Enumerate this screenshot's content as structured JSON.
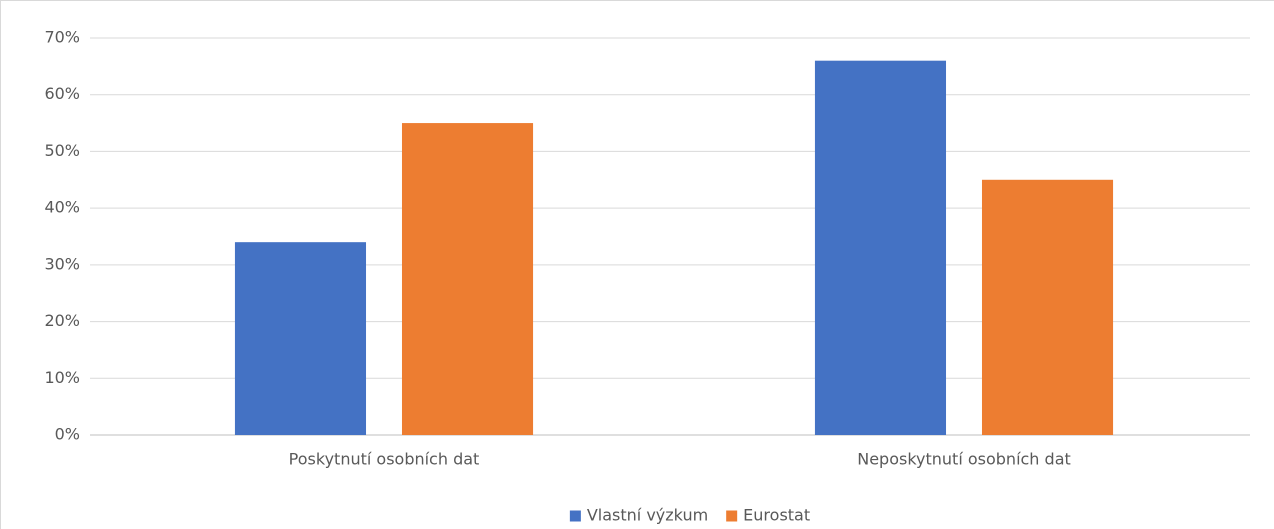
{
  "chart_data": {
    "type": "bar",
    "categories": [
      "Poskytnutí osobních dat",
      "Neposkytnutí osobních dat"
    ],
    "series": [
      {
        "name": "Vlastní výzkum",
        "color": "#4472c4",
        "values": [
          34,
          66
        ]
      },
      {
        "name": "Eurostat",
        "color": "#ed7d31",
        "values": [
          55,
          45
        ]
      }
    ],
    "ylim": [
      0,
      70
    ],
    "yticks": [
      {
        "value": 0,
        "label": "0%"
      },
      {
        "value": 10,
        "label": "10%"
      },
      {
        "value": 20,
        "label": "20%"
      },
      {
        "value": 30,
        "label": "30%"
      },
      {
        "value": 40,
        "label": "40%"
      },
      {
        "value": 50,
        "label": "50%"
      },
      {
        "value": 60,
        "label": "60%"
      },
      {
        "value": 70,
        "label": "70%"
      }
    ],
    "grid": true,
    "legend": "bottom"
  }
}
